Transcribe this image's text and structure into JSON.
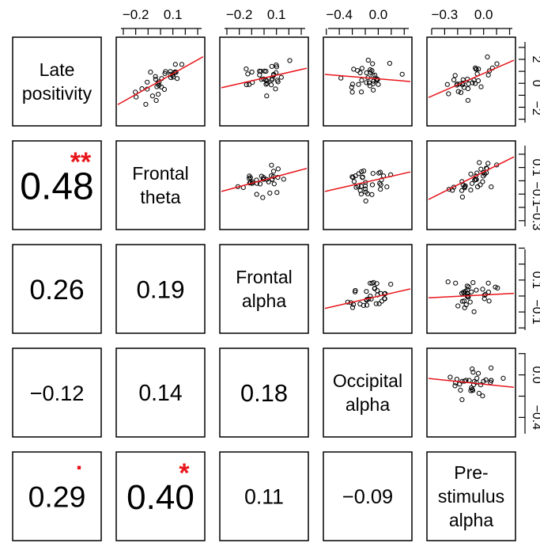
{
  "chart_data": {
    "type": "scatter",
    "variables": [
      [
        "Late",
        "positivity"
      ],
      [
        "Frontal",
        "theta"
      ],
      [
        "Frontal",
        "alpha"
      ],
      [
        "Occipital",
        "alpha"
      ],
      [
        "Pre-",
        "stimulus",
        "alpha"
      ]
    ],
    "top_axis_ticks": [
      [
        "−0.2",
        "0.1"
      ],
      [
        "−0.2",
        "0.1"
      ],
      [
        "−0.4",
        "0.0"
      ],
      [
        "−0.3",
        "0.0"
      ]
    ],
    "right_axis_ticks": [
      [
        "2",
        "0",
        "−2"
      ],
      [
        "0.1",
        "−0.1",
        "−0.3"
      ],
      [
        "0.1",
        "−0.1"
      ],
      [
        "0.0",
        "−0.4"
      ]
    ],
    "correlations": [
      {
        "row": 2,
        "col": 1,
        "value": "0.48",
        "stars": "**"
      },
      {
        "row": 3,
        "col": 1,
        "value": "0.26",
        "stars": ""
      },
      {
        "row": 3,
        "col": 2,
        "value": "0.19",
        "stars": ""
      },
      {
        "row": 4,
        "col": 1,
        "value": "−0.12",
        "stars": ""
      },
      {
        "row": 4,
        "col": 2,
        "value": "0.14",
        "stars": ""
      },
      {
        "row": 4,
        "col": 3,
        "value": "0.18",
        "stars": ""
      },
      {
        "row": 5,
        "col": 1,
        "value": "0.29",
        "stars": "."
      },
      {
        "row": 5,
        "col": 2,
        "value": "0.40",
        "stars": "*"
      },
      {
        "row": 5,
        "col": 3,
        "value": "0.11",
        "stars": ""
      },
      {
        "row": 5,
        "col": 4,
        "value": "−0.09",
        "stars": ""
      }
    ],
    "fit_line_color": "#e8161c",
    "star_color": "#e8161c",
    "point_color": "#000000"
  }
}
